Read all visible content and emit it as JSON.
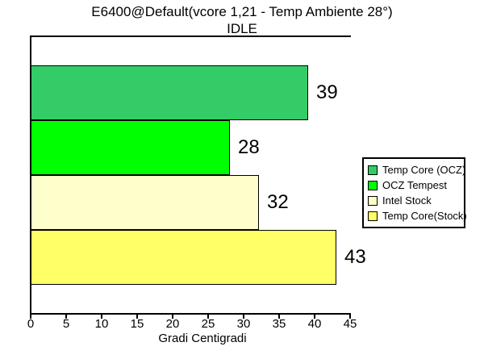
{
  "chart_data": {
    "type": "bar",
    "orientation": "horizontal",
    "title": "E6400@Default(vcore 1,21 - Temp Ambiente 28°)",
    "subtitle": "IDLE",
    "xlabel": "Gradi Centigradi",
    "xlim": [
      0,
      45
    ],
    "xticks": [
      0,
      5,
      10,
      15,
      20,
      25,
      30,
      35,
      40,
      45
    ],
    "grid": false,
    "legend_position": "right",
    "series": [
      {
        "name": "Temp Core (OCZ)",
        "value": 39,
        "color": "#33CC66"
      },
      {
        "name": "OCZ Tempest",
        "value": 28,
        "color": "#00FF00"
      },
      {
        "name": "Intel Stock",
        "value": 32,
        "color": "#FFFFCC"
      },
      {
        "name": "Temp Core(Stock)",
        "value": 43,
        "color": "#FFFF66"
      }
    ]
  },
  "colors": {
    "background": "#FFFFFF",
    "axis": "#000000",
    "bar_border": "#000000",
    "text": "#000000"
  }
}
